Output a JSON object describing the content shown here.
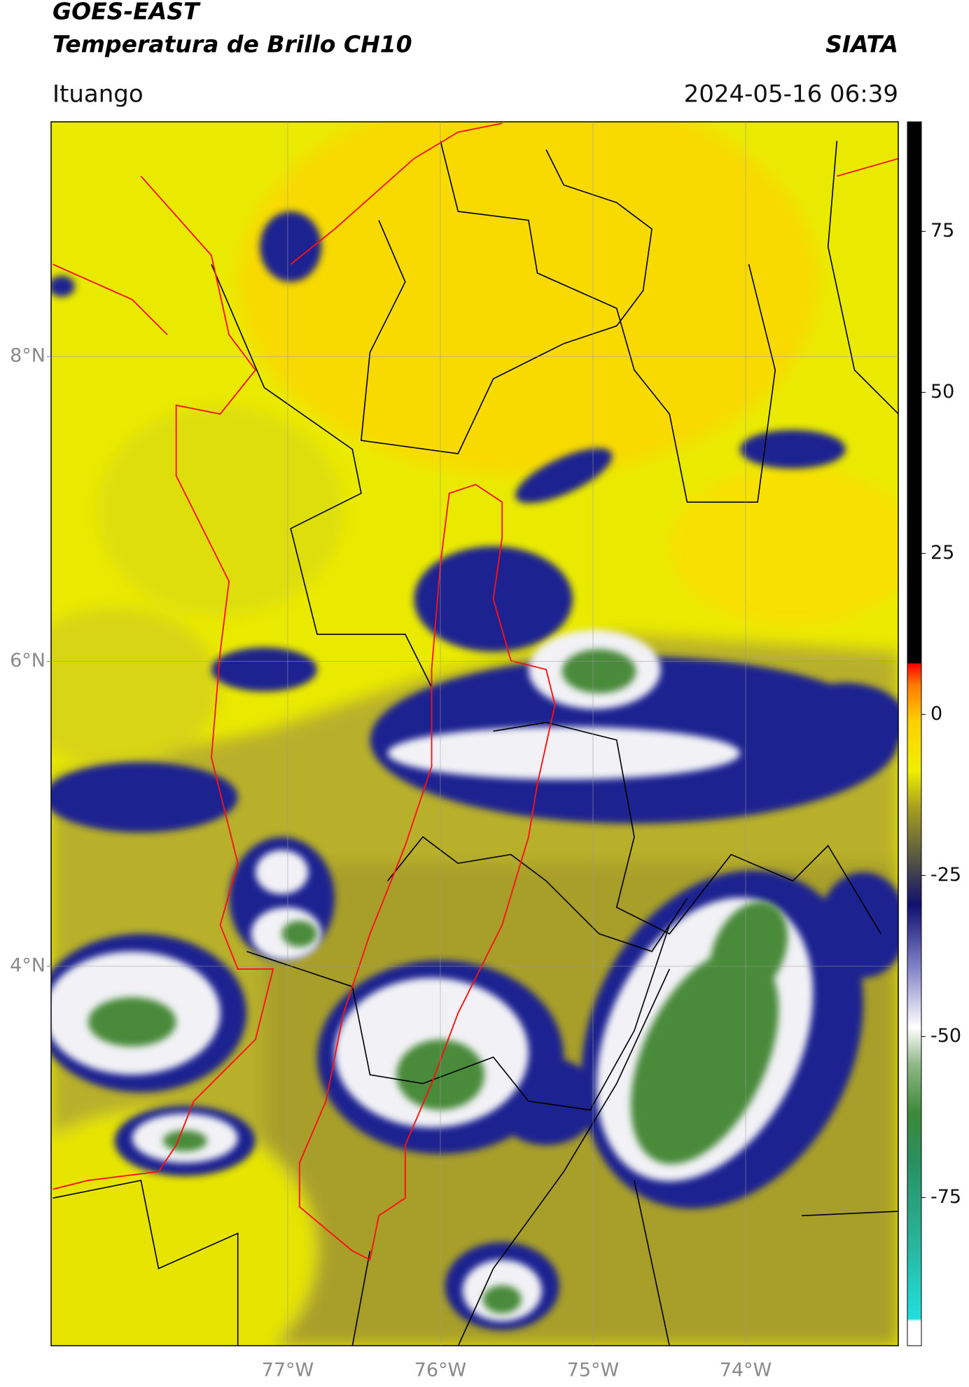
{
  "header": {
    "title": "GOES-EAST",
    "subtitle": "Temperatura de Brillo CH10",
    "source": "SIATA",
    "location": "Ituango",
    "datetime": "2024-05-16 06:39"
  },
  "chart_data": {
    "type": "map",
    "xlim": [
      -78.55,
      -73.0
    ],
    "ylim": [
      1.51,
      9.54
    ],
    "xticks": [
      {
        "value": -77,
        "label": "77°W"
      },
      {
        "value": -76,
        "label": "76°W"
      },
      {
        "value": -75,
        "label": "75°W"
      },
      {
        "value": -74,
        "label": "74°W"
      }
    ],
    "yticks": [
      {
        "value": 4,
        "label": "4°N"
      },
      {
        "value": 6,
        "label": "6°N"
      },
      {
        "value": 8,
        "label": "8°N"
      }
    ],
    "grid": true,
    "colorbar": {
      "lim": [
        -98,
        92
      ],
      "ticks": [
        -75,
        -50,
        -25,
        0,
        25,
        50,
        75
      ]
    }
  }
}
